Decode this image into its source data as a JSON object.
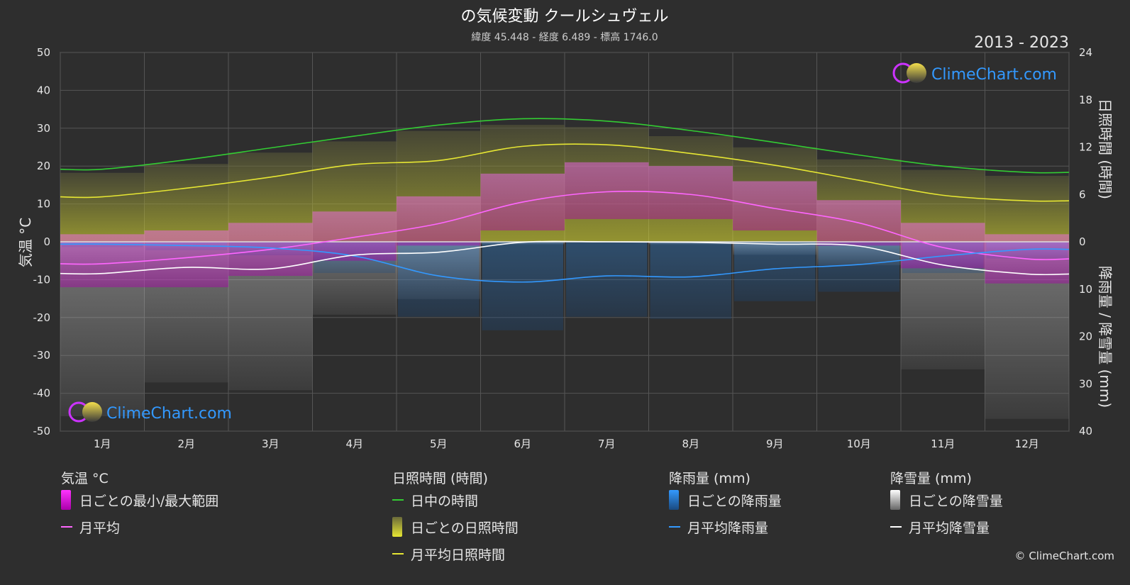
{
  "chart_data": {
    "type": "area",
    "title": "の気候変動 クールシュヴェル",
    "subtitle": "緯度 45.448 - 経度 6.489 - 標高 1746.0",
    "period": "2013 - 2023",
    "brand": "ClimeChart.com",
    "copyright": "© ClimeChart.com",
    "x_categories": [
      "1月",
      "2月",
      "3月",
      "4月",
      "5月",
      "6月",
      "7月",
      "8月",
      "9月",
      "10月",
      "11月",
      "12月"
    ],
    "y_left": {
      "label": "気温 °C",
      "ticks": [
        50,
        40,
        30,
        20,
        10,
        0,
        -10,
        -20,
        -30,
        -40,
        -50
      ],
      "range": [
        -50,
        50
      ]
    },
    "y_right_top": {
      "label": "日照時間 (時間)",
      "ticks": [
        24,
        18,
        12,
        6,
        0
      ],
      "range": [
        0,
        24
      ]
    },
    "y_right_bottom": {
      "label": "降雨量 / 降雪量 (mm)",
      "ticks": [
        0,
        10,
        20,
        30,
        40
      ],
      "range": [
        0,
        40
      ]
    },
    "series": [
      {
        "name": "日中の時間",
        "unit": "h",
        "color": "#33cc33",
        "values": [
          9.2,
          10.4,
          11.9,
          13.4,
          14.8,
          15.6,
          15.3,
          14.1,
          12.6,
          11.0,
          9.6,
          8.8
        ]
      },
      {
        "name": "月平均日照時間",
        "unit": "h",
        "color": "#e6e633",
        "values": [
          5.7,
          6.8,
          8.2,
          9.8,
          10.3,
          12.1,
          12.3,
          11.2,
          9.7,
          7.8,
          5.9,
          5.2
        ]
      },
      {
        "name": "月平均",
        "unit": "°C",
        "color": "#ff66ff",
        "values": [
          -5.8,
          -4.2,
          -2.0,
          1.2,
          4.8,
          10.5,
          13.2,
          12.5,
          8.8,
          5.0,
          -1.5,
          -4.5
        ]
      },
      {
        "name": "月平均降雨量",
        "unit": "mm",
        "color": "#3399ff",
        "values": [
          0.5,
          0.8,
          1.3,
          3.0,
          7.2,
          8.5,
          7.2,
          7.4,
          5.7,
          4.8,
          3.0,
          1.6
        ]
      },
      {
        "name": "月平均降雪量",
        "unit": "mm",
        "color": "#ffffff",
        "values": [
          6.7,
          5.4,
          5.7,
          2.8,
          2.2,
          0.1,
          0.0,
          0.1,
          0.5,
          0.9,
          4.9,
          6.8
        ]
      }
    ],
    "daily_range": {
      "name": "日ごとの最小/最大範囲",
      "min": [
        -12,
        -12,
        -9,
        -5,
        -1,
        3,
        6,
        6,
        3,
        -1,
        -7,
        -11
      ],
      "max": [
        2,
        3,
        5,
        8,
        12,
        18,
        21,
        20,
        16,
        11,
        5,
        2
      ]
    },
    "grid": true
  },
  "legend": {
    "temperature": {
      "heading": "気温 °C",
      "items": [
        "日ごとの最小/最大範囲",
        "月平均"
      ]
    },
    "sunshine": {
      "heading": "日照時間 (時間)",
      "items": [
        "日中の時間",
        "日ごとの日照時間",
        "月平均日照時間"
      ]
    },
    "rain": {
      "heading": "降雨量 (mm)",
      "items": [
        "日ごとの降雨量",
        "月平均降雨量"
      ]
    },
    "snow": {
      "heading": "降雪量 (mm)",
      "items": [
        "日ごとの降雪量",
        "月平均降雪量"
      ]
    }
  }
}
